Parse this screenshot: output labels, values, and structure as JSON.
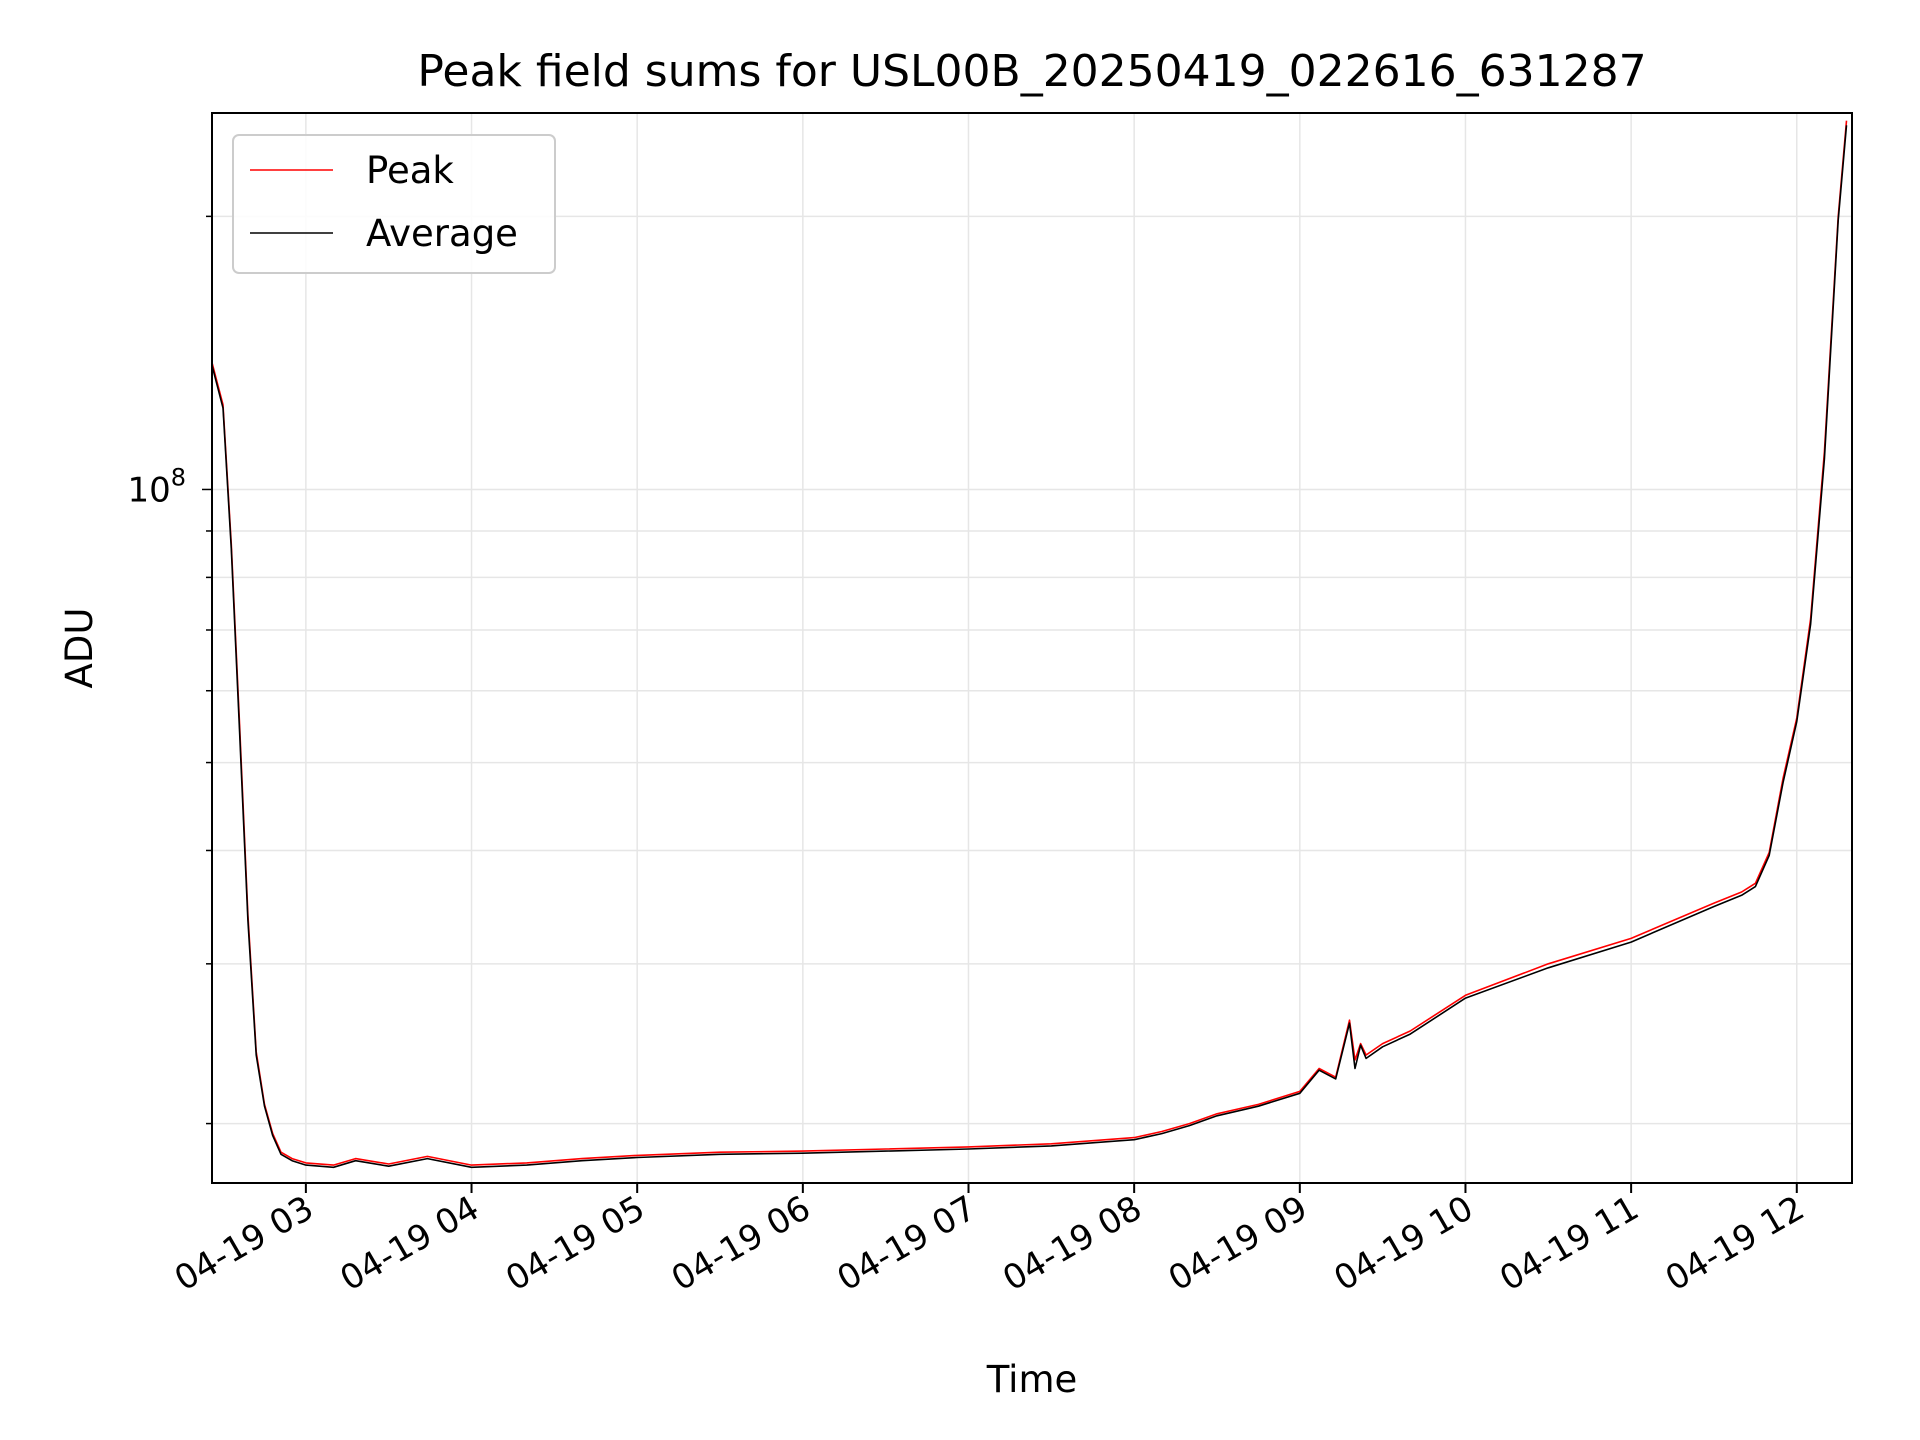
{
  "chart_data": {
    "type": "line",
    "title": "Peak field sums for USL00B_20250419_022616_631287",
    "xlabel": "Time",
    "ylabel": "ADU",
    "yscale": "log",
    "grid": true,
    "legend_position": "top-left",
    "x_tick_labels": [
      "04-19 03",
      "04-19 04",
      "04-19 05",
      "04-19 06",
      "04-19 07",
      "04-19 08",
      "04-19 09",
      "04-19 10",
      "04-19 11",
      "04-19 12"
    ],
    "y_tick_labels": [
      {
        "base": "10",
        "exp": "8",
        "value": 100000000
      }
    ],
    "xlim": [
      "04-19 02:26",
      "04-19 12:20"
    ],
    "ylim": [
      17200000,
      260000000
    ],
    "series": [
      {
        "name": "Peak",
        "color": "#ff0000",
        "x": [
          "04-19 02:26",
          "04-19 02:30",
          "04-19 02:33",
          "04-19 02:36",
          "04-19 02:39",
          "04-19 02:42",
          "04-19 02:45",
          "04-19 02:48",
          "04-19 02:51",
          "04-19 02:55",
          "04-19 03:00",
          "04-19 03:10",
          "04-19 03:18",
          "04-19 03:30",
          "04-19 03:44",
          "04-19 04:00",
          "04-19 04:20",
          "04-19 04:40",
          "04-19 05:00",
          "04-19 05:30",
          "04-19 06:00",
          "04-19 06:30",
          "04-19 07:00",
          "04-19 07:30",
          "04-19 08:00",
          "04-19 08:10",
          "04-19 08:20",
          "04-19 08:30",
          "04-19 08:45",
          "04-19 09:00",
          "04-19 09:07",
          "04-19 09:13",
          "04-19 09:18",
          "04-19 09:20",
          "04-19 09:22",
          "04-19 09:24",
          "04-19 09:30",
          "04-19 09:40",
          "04-19 10:00",
          "04-19 10:30",
          "04-19 11:00",
          "04-19 11:30",
          "04-19 11:40",
          "04-19 11:45",
          "04-19 11:50",
          "04-19 11:55",
          "04-19 12:00",
          "04-19 12:05",
          "04-19 12:10",
          "04-19 12:15",
          "04-19 12:18"
        ],
        "values": [
          138000000,
          124000000,
          87000000,
          55000000,
          34000000,
          24000000,
          21000000,
          19500000,
          18600000,
          18300000,
          18100000,
          18000000,
          18300000,
          18050000,
          18400000,
          18000000,
          18100000,
          18300000,
          18450000,
          18600000,
          18650000,
          18750000,
          18850000,
          19000000,
          19300000,
          19600000,
          20000000,
          20500000,
          21000000,
          21700000,
          23000000,
          22500000,
          26000000,
          23500000,
          24500000,
          23800000,
          24500000,
          25300000,
          27700000,
          30000000,
          32000000,
          35000000,
          36000000,
          36800000,
          39800000,
          48000000,
          56000000,
          72000000,
          110000000,
          200000000,
          255000000
        ]
      },
      {
        "name": "Average",
        "color": "#000000",
        "x": [
          "04-19 02:26",
          "04-19 02:30",
          "04-19 02:33",
          "04-19 02:36",
          "04-19 02:39",
          "04-19 02:42",
          "04-19 02:45",
          "04-19 02:48",
          "04-19 02:51",
          "04-19 02:55",
          "04-19 03:00",
          "04-19 03:10",
          "04-19 03:18",
          "04-19 03:30",
          "04-19 03:44",
          "04-19 04:00",
          "04-19 04:20",
          "04-19 04:40",
          "04-19 05:00",
          "04-19 05:30",
          "04-19 06:00",
          "04-19 06:30",
          "04-19 07:00",
          "04-19 07:30",
          "04-19 08:00",
          "04-19 08:10",
          "04-19 08:20",
          "04-19 08:30",
          "04-19 08:45",
          "04-19 09:00",
          "04-19 09:07",
          "04-19 09:13",
          "04-19 09:18",
          "04-19 09:20",
          "04-19 09:22",
          "04-19 09:24",
          "04-19 09:30",
          "04-19 09:40",
          "04-19 10:00",
          "04-19 10:30",
          "04-19 11:00",
          "04-19 11:30",
          "04-19 11:40",
          "04-19 11:45",
          "04-19 11:50",
          "04-19 11:55",
          "04-19 12:00",
          "04-19 12:05",
          "04-19 12:10",
          "04-19 12:15",
          "04-19 12:18"
        ],
        "values": [
          137000000,
          123000000,
          86000000,
          54000000,
          33500000,
          23800000,
          20900000,
          19400000,
          18500000,
          18200000,
          18000000,
          17900000,
          18200000,
          17950000,
          18300000,
          17900000,
          18000000,
          18200000,
          18350000,
          18500000,
          18550000,
          18650000,
          18750000,
          18900000,
          19200000,
          19500000,
          19900000,
          20400000,
          20900000,
          21600000,
          22900000,
          22400000,
          25800000,
          23000000,
          24400000,
          23600000,
          24300000,
          25100000,
          27500000,
          29700000,
          31700000,
          34700000,
          35700000,
          36500000,
          39500000,
          47500000,
          55500000,
          71000000,
          108000000,
          198000000,
          252000000
        ]
      }
    ]
  }
}
